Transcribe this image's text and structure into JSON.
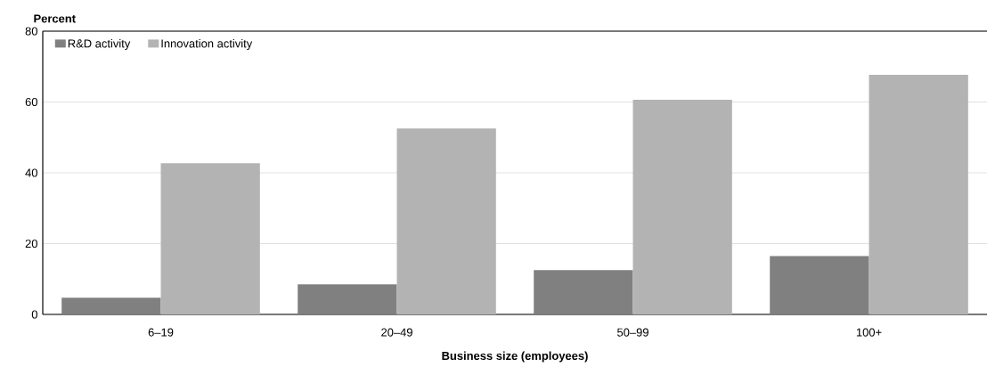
{
  "chart_data": {
    "type": "bar",
    "ylabel": "Percent",
    "xlabel": "Business size (employees)",
    "categories": [
      "6–19",
      "20–49",
      "50–99",
      "100+"
    ],
    "series": [
      {
        "name": "R&D activity",
        "color": "#808080",
        "values": [
          4.7,
          8.5,
          12.5,
          16.5
        ]
      },
      {
        "name": "Innovation activity",
        "color": "#b3b3b3",
        "values": [
          42.7,
          52.5,
          60.6,
          67.7
        ]
      }
    ],
    "ylim": [
      0,
      80
    ],
    "yticks": [
      0,
      20,
      40,
      60,
      80
    ],
    "grid": "y",
    "legend": "top left"
  }
}
